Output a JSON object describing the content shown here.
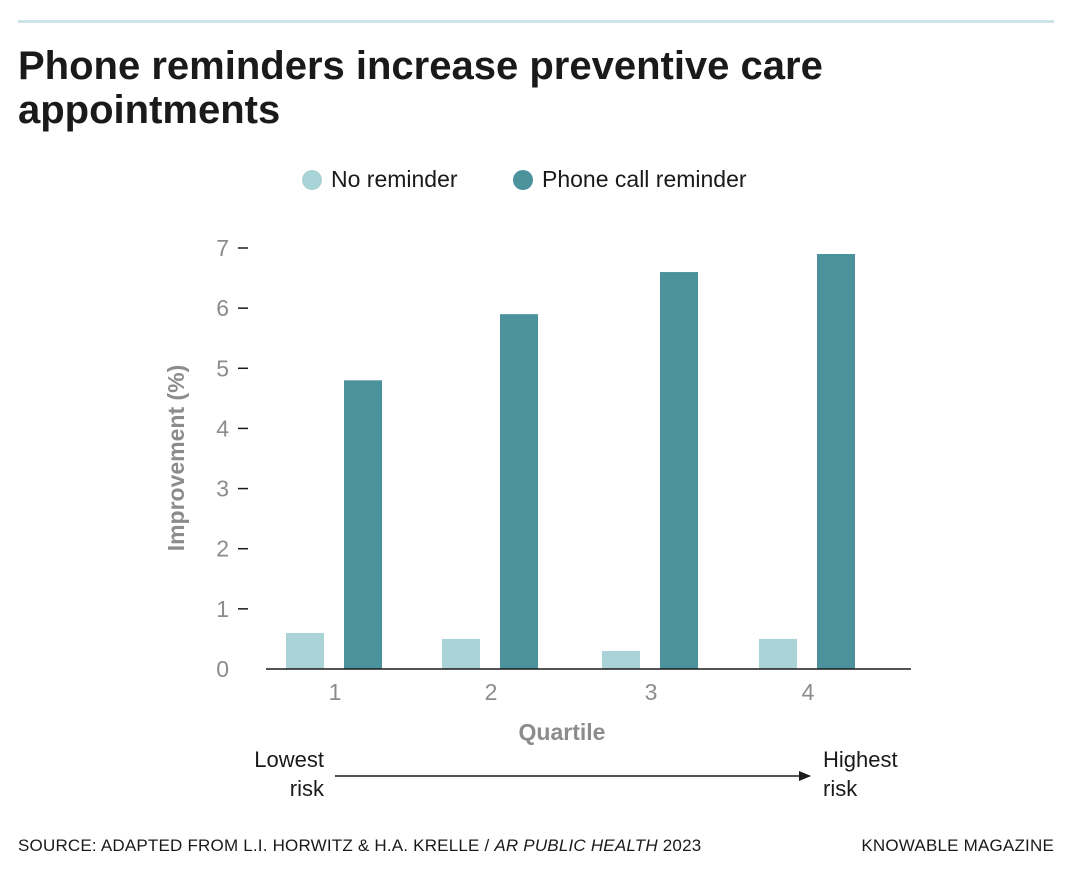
{
  "title": "Phone reminders increase preventive care appointments",
  "colors": {
    "no_reminder": "#a9d3d6",
    "phone_reminder": "#4b929c",
    "axis_text": "#8c8c8c",
    "rule": "#cfe4ea"
  },
  "legend": [
    {
      "label": "No reminder",
      "color": "#a9d3d6"
    },
    {
      "label": "Phone call reminder",
      "color": "#4b929c"
    }
  ],
  "chart_data": {
    "type": "bar",
    "categories": [
      "1",
      "2",
      "3",
      "4"
    ],
    "series": [
      {
        "name": "No reminder",
        "values": [
          0.6,
          0.5,
          0.3,
          0.5
        ]
      },
      {
        "name": "Phone call reminder",
        "values": [
          4.8,
          5.9,
          6.6,
          6.9
        ]
      }
    ],
    "xlabel": "Quartile",
    "ylabel": "Improvement (%)",
    "ylim": [
      0,
      7
    ],
    "yticks": [
      0,
      1,
      2,
      3,
      4,
      5,
      6,
      7
    ],
    "grid": false,
    "legend_position": "top"
  },
  "risk_scale": {
    "low_line1": "Lowest",
    "low_line2": "risk",
    "high_line1": "Highest",
    "high_line2": "risk"
  },
  "footer": {
    "source_prefix": "SOURCE: ADAPTED FROM L.I. HORWITZ & H.A. KRELLE",
    "source_journal": "AR PUBLIC HEALTH",
    "source_year": "2023",
    "publisher": "KNOWABLE MAGAZINE"
  }
}
